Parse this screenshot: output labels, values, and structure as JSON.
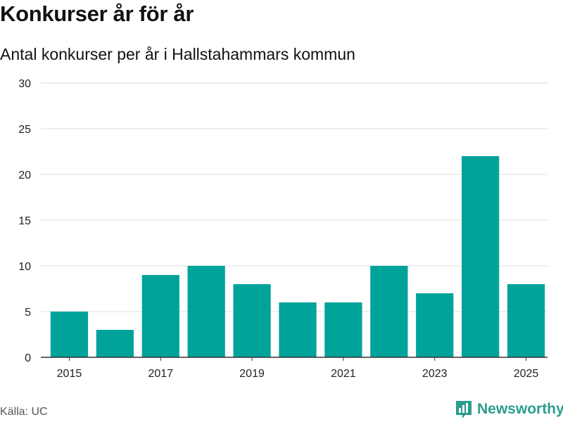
{
  "header": {
    "title": "Konkurser år för år",
    "subtitle": "Antal konkurser per år i Hallstahammars kommun"
  },
  "footer": {
    "source": "Källa: UC",
    "brand": "Newsworthy",
    "brand_icon": "bar-chart-logo-icon"
  },
  "colors": {
    "bar": "#00a39a",
    "grid": "#dddddd",
    "axis": "#333333",
    "brand": "#2a9d8f"
  },
  "chart_data": {
    "type": "bar",
    "title": "Konkurser år för år",
    "subtitle": "Antal konkurser per år i Hallstahammars kommun",
    "xlabel": "",
    "ylabel": "",
    "categories": [
      2015,
      2016,
      2017,
      2018,
      2019,
      2020,
      2021,
      2022,
      2023,
      2024,
      2025
    ],
    "values": [
      5,
      3,
      9,
      10,
      8,
      6,
      6,
      10,
      7,
      22,
      8
    ],
    "ylim": [
      0,
      30
    ],
    "yticks": [
      0,
      5,
      10,
      15,
      20,
      25,
      30
    ],
    "xticks": [
      2015,
      2017,
      2019,
      2021,
      2023,
      2025
    ],
    "grid": true,
    "legend": "none"
  }
}
